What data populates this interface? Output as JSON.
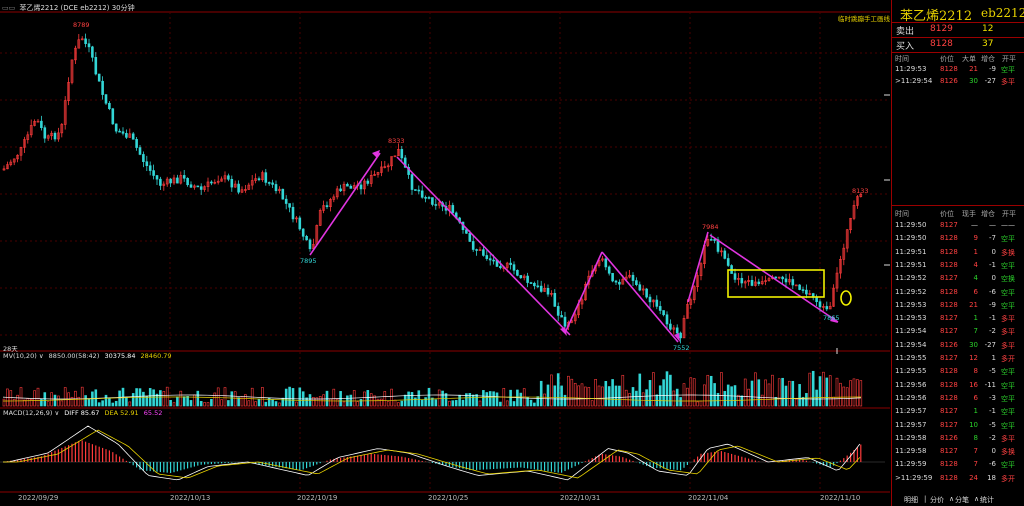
{
  "window": {
    "title": "苯乙烯2212",
    "exchange_code": "(DCE  eb2212)",
    "period": "30分钟",
    "mv_label": "MV(10,20)",
    "mv_values": [
      "8850.00(58:42)",
      "30375.84",
      "28460.79"
    ],
    "macd_label": "MACD(12,26,9)",
    "macd_values": [
      "DIFF 85.67",
      "DEA 52.91",
      "65.52"
    ],
    "days_label": "28天",
    "plan_label": "临时跳蹦手工画线"
  },
  "chart_data": {
    "type": "candlestick",
    "x_labels": [
      "2022/09/29",
      "2022/10/13",
      "2022/10/19",
      "2022/10/25",
      "2022/10/31",
      "2022/11/04",
      "2022/11/10"
    ],
    "price_annotations": [
      {
        "label": "8789"
      },
      {
        "label": "7895"
      },
      {
        "label": "8333"
      },
      {
        "label": "7552"
      },
      {
        "label": "7984"
      },
      {
        "label": "7865"
      },
      {
        "label": "8133"
      }
    ],
    "indicator_series": [
      "MV",
      "MACD"
    ],
    "colors": {
      "up": "#ff3b3b",
      "down": "#33d6d6",
      "line_annotation": "#e035e0",
      "rectangle": "#f1f100",
      "axis": "#8b0000"
    }
  },
  "panel": {
    "symbol_name": "苯乙烯2212",
    "symbol_code": "eb2212",
    "quote": [
      {
        "label": "卖出",
        "price": "8129",
        "volume": "12"
      },
      {
        "label": "买入",
        "price": "8128",
        "volume": "37"
      }
    ],
    "top_headers": [
      "时间",
      "价位",
      "大单",
      "增仓",
      "开平"
    ],
    "top_rows": [
      {
        "time": "11:29:53",
        "price": "8128",
        "qty": "21",
        "oi": "-9",
        "type": "空平",
        "qc": "red",
        "tc": "grn"
      },
      {
        "time": ">11:29:54",
        "price": "8126",
        "qty": "30",
        "oi": "-27",
        "type": "多平",
        "qc": "grn",
        "tc": "red"
      }
    ],
    "headers": [
      "时间",
      "价位",
      "现手",
      "增仓",
      "开平"
    ],
    "rows": [
      {
        "time": "11:29:50",
        "price": "8127",
        "qty": "—",
        "oi": "—",
        "type": "——",
        "qc": "wht",
        "tc": "wht"
      },
      {
        "time": "11:29:50",
        "price": "8128",
        "qty": "9",
        "oi": "-7",
        "type": "空平",
        "qc": "red",
        "tc": "grn"
      },
      {
        "time": "11:29:51",
        "price": "8128",
        "qty": "1",
        "oi": "0",
        "type": "多换",
        "qc": "red",
        "tc": "red"
      },
      {
        "time": "11:29:51",
        "price": "8128",
        "qty": "4",
        "oi": "-1",
        "type": "空平",
        "qc": "red",
        "tc": "grn"
      },
      {
        "time": "11:29:52",
        "price": "8127",
        "qty": "4",
        "oi": "0",
        "type": "空换",
        "qc": "grn",
        "tc": "grn"
      },
      {
        "time": "11:29:52",
        "price": "8128",
        "qty": "6",
        "oi": "-6",
        "type": "空平",
        "qc": "red",
        "tc": "grn"
      },
      {
        "time": "11:29:53",
        "price": "8128",
        "qty": "21",
        "oi": "-9",
        "type": "空平",
        "qc": "red",
        "tc": "grn"
      },
      {
        "time": "11:29:53",
        "price": "8127",
        "qty": "1",
        "oi": "-1",
        "type": "多平",
        "qc": "grn",
        "tc": "red"
      },
      {
        "time": "11:29:54",
        "price": "8127",
        "qty": "7",
        "oi": "-2",
        "type": "多平",
        "qc": "grn",
        "tc": "red"
      },
      {
        "time": "11:29:54",
        "price": "8126",
        "qty": "30",
        "oi": "-27",
        "type": "多平",
        "qc": "grn",
        "tc": "red"
      },
      {
        "time": "11:29:55",
        "price": "8127",
        "qty": "12",
        "oi": "1",
        "type": "多开",
        "qc": "red",
        "tc": "red"
      },
      {
        "time": "11:29:55",
        "price": "8128",
        "qty": "8",
        "oi": "-5",
        "type": "空平",
        "qc": "red",
        "tc": "grn"
      },
      {
        "time": "11:29:56",
        "price": "8128",
        "qty": "16",
        "oi": "-11",
        "type": "空平",
        "qc": "red",
        "tc": "grn"
      },
      {
        "time": "11:29:56",
        "price": "8128",
        "qty": "6",
        "oi": "-3",
        "type": "空平",
        "qc": "red",
        "tc": "grn"
      },
      {
        "time": "11:29:57",
        "price": "8127",
        "qty": "1",
        "oi": "-1",
        "type": "空平",
        "qc": "grn",
        "tc": "grn"
      },
      {
        "time": "11:29:57",
        "price": "8127",
        "qty": "10",
        "oi": "-5",
        "type": "空平",
        "qc": "grn",
        "tc": "grn"
      },
      {
        "time": "11:29:58",
        "price": "8126",
        "qty": "8",
        "oi": "-2",
        "type": "多平",
        "qc": "grn",
        "tc": "red"
      },
      {
        "time": "11:29:58",
        "price": "8127",
        "qty": "7",
        "oi": "0",
        "type": "多换",
        "qc": "red",
        "tc": "red"
      },
      {
        "time": "11:29:59",
        "price": "8128",
        "qty": "7",
        "oi": "-6",
        "type": "空平",
        "qc": "red",
        "tc": "grn"
      },
      {
        "time": ">11:29:59",
        "price": "8128",
        "qty": "24",
        "oi": "18",
        "type": "多开",
        "qc": "red",
        "tc": "red"
      }
    ],
    "tabs": [
      "明细",
      "分价",
      "分笔",
      "统计"
    ]
  }
}
